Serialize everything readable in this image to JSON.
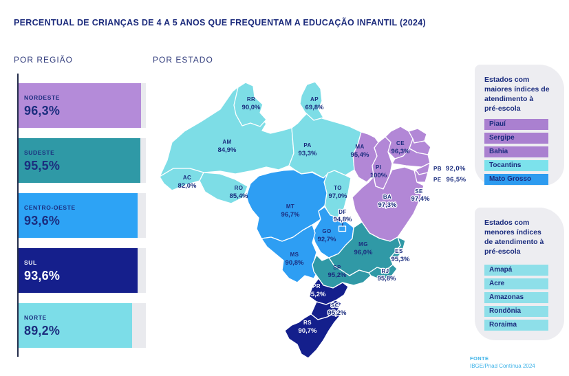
{
  "title": "PERCENTUAL DE CRIANÇAS DE 4 A 5 ANOS QUE FREQUENTAM A EDUCAÇÃO INFANTIL (2024)",
  "sections": {
    "by_region": "POR REGIÃO",
    "by_state": "POR ESTADO"
  },
  "colors": {
    "title_text": "#1c2b7c",
    "section_text": "#343f7e",
    "label_text": "#1b2d7e",
    "bar_track": "#e9eaee",
    "panel_bg": "#ededf1",
    "source_text": "#3fb3e8",
    "axis_line": "#232c4a"
  },
  "regions": [
    {
      "name": "NORDESTE",
      "value": 96.3,
      "value_label": "96,3%",
      "color": "#b48bd9",
      "text_color": "#1b2d7e"
    },
    {
      "name": "SUDESTE",
      "value": 95.5,
      "value_label": "95,5%",
      "color": "#2f99a6",
      "text_color": "#1b2d7e"
    },
    {
      "name": "CENTRO-OESTE",
      "value": 93.6,
      "value_label": "93,6%",
      "color": "#2da3f5",
      "text_color": "#1b2d7e"
    },
    {
      "name": "SUL",
      "value": 93.6,
      "value_label": "93,6%",
      "color": "#151f8c",
      "text_color": "#ffffff"
    },
    {
      "name": "NORTE",
      "value": 89.2,
      "value_label": "89,2%",
      "color": "#7cdde8",
      "text_color": "#1b2d7e"
    }
  ],
  "map": {
    "region_colors": {
      "norte": "#7ddde6",
      "nordeste": "#b287d6",
      "centro_oeste": "#2e9ef3",
      "sudeste": "#3099a6",
      "sul": "#141f8c"
    },
    "states": {
      "rr": {
        "code": "RR",
        "value": "90,0%"
      },
      "ap": {
        "code": "AP",
        "value": "69,8%"
      },
      "am": {
        "code": "AM",
        "value": "84,9%"
      },
      "pa": {
        "code": "PA",
        "value": "93,3%"
      },
      "ac": {
        "code": "AC",
        "value": "82,0%"
      },
      "ro": {
        "code": "RO",
        "value": "85,4%"
      },
      "mt": {
        "code": "MT",
        "value": "96,7%"
      },
      "to": {
        "code": "TO",
        "value": "97,0%"
      },
      "ma": {
        "code": "MA",
        "value": "95,4%"
      },
      "pi": {
        "code": "PI",
        "value": "100%"
      },
      "ce": {
        "code": "CE",
        "value": "96,3%"
      },
      "pb": {
        "code": "PB",
        "value": "92,0%"
      },
      "pe": {
        "code": "PE",
        "value": "96,5%"
      },
      "ba": {
        "code": "BA",
        "value": "97,3%"
      },
      "se": {
        "code": "SE",
        "value": "97,4%"
      },
      "df": {
        "code": "DF",
        "value": "94,8%"
      },
      "go": {
        "code": "GO",
        "value": "92,7%"
      },
      "ms": {
        "code": "MS",
        "value": "90,8%"
      },
      "mg": {
        "code": "MG",
        "value": "96,0%"
      },
      "es": {
        "code": "ES",
        "value": "95,3%"
      },
      "rj": {
        "code": "RJ",
        "value": "95,8%"
      },
      "sp": {
        "code": "SP",
        "value": "95,2%"
      },
      "pr": {
        "code": "PR",
        "value": "95,2%"
      },
      "sc": {
        "code": "SC",
        "value": "95,2%"
      },
      "rs": {
        "code": "RS",
        "value": "90,7%"
      }
    }
  },
  "panels": {
    "highest": {
      "title_lines": [
        "Estados com",
        "maiores índices de",
        "atendimento à",
        "pré-escola"
      ],
      "items": [
        {
          "label": "Piauí",
          "color": "#aa80d0"
        },
        {
          "label": "Sergipe",
          "color": "#aa80d0"
        },
        {
          "label": "Bahia",
          "color": "#aa80d0"
        },
        {
          "label": "Tocantins",
          "color": "#7ce2ec"
        },
        {
          "label": "Mato Grosso",
          "color": "#2d9bef"
        }
      ]
    },
    "lowest": {
      "title_lines": [
        "Estados com",
        "menores índices",
        "de atendimento à",
        "pré-escola"
      ],
      "items": [
        {
          "label": "Amapá",
          "color": "#8edfe9"
        },
        {
          "label": "Acre",
          "color": "#8edfe9"
        },
        {
          "label": "Amazonas",
          "color": "#8edfe9"
        },
        {
          "label": "Rondônia",
          "color": "#8edfe9"
        },
        {
          "label": "Roraima",
          "color": "#8edfe9"
        }
      ]
    }
  },
  "source": {
    "label": "FONTE",
    "text": "IBGE/Pnad Contínua 2024"
  },
  "chart_data": [
    {
      "type": "bar",
      "orientation": "horizontal",
      "title": "POR REGIÃO",
      "categories": [
        "NORDESTE",
        "SUDESTE",
        "CENTRO-OESTE",
        "SUL",
        "NORTE"
      ],
      "values": [
        96.3,
        95.5,
        93.6,
        93.6,
        89.2
      ],
      "data_labels": [
        "96,3%",
        "95,5%",
        "93,6%",
        "93,6%",
        "89,2%"
      ],
      "unit": "%",
      "xlim": [
        0,
        100
      ],
      "grid": false,
      "legend": false
    },
    {
      "type": "heatmap",
      "subtype": "choropleth-brazil-states",
      "title": "POR ESTADO",
      "unit": "%",
      "points": [
        {
          "state": "RR",
          "value": 90.0
        },
        {
          "state": "AP",
          "value": 69.8
        },
        {
          "state": "AM",
          "value": 84.9
        },
        {
          "state": "PA",
          "value": 93.3
        },
        {
          "state": "AC",
          "value": 82.0
        },
        {
          "state": "RO",
          "value": 85.4
        },
        {
          "state": "TO",
          "value": 97.0
        },
        {
          "state": "MA",
          "value": 95.4
        },
        {
          "state": "PI",
          "value": 100
        },
        {
          "state": "CE",
          "value": 96.3
        },
        {
          "state": "PB",
          "value": 92.0
        },
        {
          "state": "PE",
          "value": 96.5
        },
        {
          "state": "BA",
          "value": 97.3
        },
        {
          "state": "SE",
          "value": 97.4
        },
        {
          "state": "MT",
          "value": 96.7
        },
        {
          "state": "DF",
          "value": 94.8
        },
        {
          "state": "GO",
          "value": 92.7
        },
        {
          "state": "MS",
          "value": 90.8
        },
        {
          "state": "MG",
          "value": 96.0
        },
        {
          "state": "ES",
          "value": 95.3
        },
        {
          "state": "RJ",
          "value": 95.8
        },
        {
          "state": "SP",
          "value": 95.2
        },
        {
          "state": "PR",
          "value": 95.2
        },
        {
          "state": "SC",
          "value": 95.2
        },
        {
          "state": "RS",
          "value": 90.7
        }
      ]
    }
  ]
}
